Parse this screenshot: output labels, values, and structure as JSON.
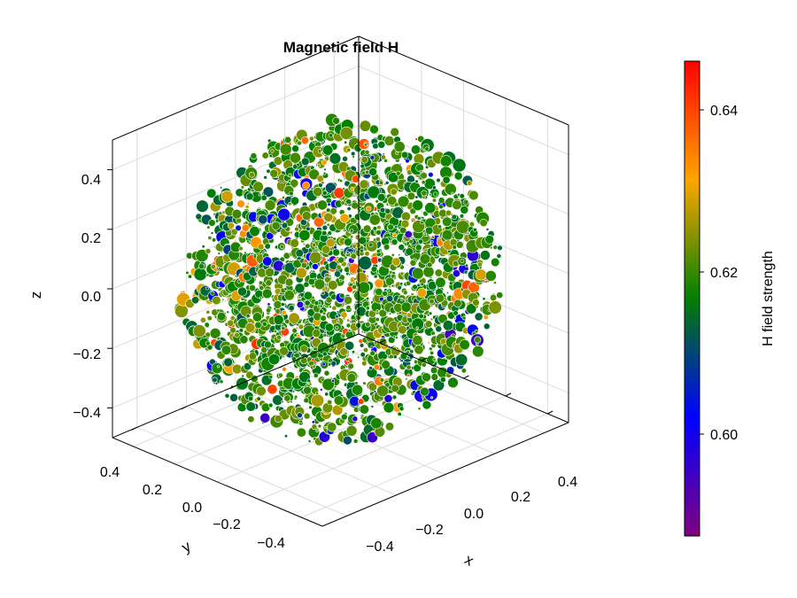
{
  "chart_data": {
    "type": "scatter3d",
    "title": "Magnetic field H",
    "xlabel": "x",
    "ylabel": "y",
    "zlabel": "z",
    "xlim": [
      -0.5,
      0.5
    ],
    "ylim": [
      -0.5,
      0.5
    ],
    "zlim": [
      -0.5,
      0.5
    ],
    "x_ticks": [
      "−0.4",
      "−0.2",
      "0.0",
      "0.2",
      "0.4"
    ],
    "y_ticks": [
      "0.4",
      "0.2",
      "0.0",
      "−0.2",
      "−0.4"
    ],
    "z_ticks": [
      "0.4",
      "0.2",
      "0.0",
      "−0.2",
      "−0.4"
    ],
    "grid": true,
    "points": {
      "shape": "sphere",
      "radius": 0.5,
      "count": 2500,
      "dominant_value": 0.618,
      "value_range": [
        0.586,
        0.646
      ]
    },
    "colorbar": {
      "label": "H field strength",
      "limits": [
        0.586,
        0.646
      ],
      "ticks": [
        "0.64",
        "0.62",
        "0.60"
      ],
      "tick_values": [
        0.64,
        0.62,
        0.6
      ],
      "colors": [
        "#800080",
        "#0000ff",
        "#008000",
        "#ffa500",
        "#ff0000"
      ]
    }
  }
}
